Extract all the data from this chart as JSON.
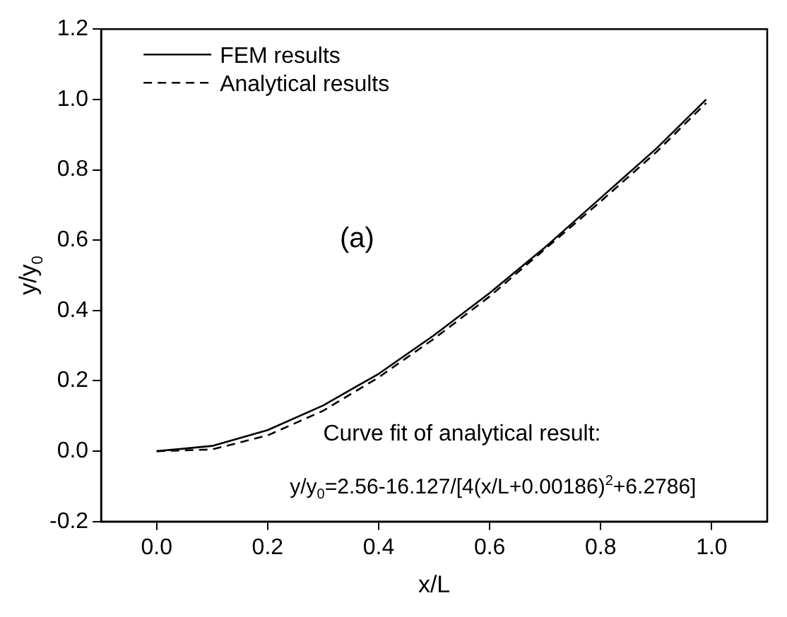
{
  "chart_data": {
    "type": "line",
    "xlabel": "x/L",
    "ylabel": "y/y$_{0}$",
    "annotations": [
      "(a)",
      "Curve fit of analytical result:",
      "y/y$_{0}$=2.56-16.127/[4(x/L+0.00186)$^{2}$+6.2786]"
    ],
    "series": [
      {
        "name": "FEM results",
        "color": "#000000",
        "line_style": "solid",
        "x": [
          0,
          0.1,
          0.2,
          0.3,
          0.4,
          0.5,
          0.6,
          0.7,
          0.8,
          0.9,
          0.99
        ],
        "values": [
          0,
          0.015,
          0.06,
          0.13,
          0.22,
          0.33,
          0.45,
          0.58,
          0.72,
          0.86,
          1.0
        ]
      },
      {
        "name": "Analytical results",
        "color": "#000000",
        "line_style": "dashed",
        "x": [
          0,
          0.1,
          0.2,
          0.3,
          0.4,
          0.5,
          0.6,
          0.7,
          0.8,
          0.9,
          0.99
        ],
        "values": [
          0,
          0.005,
          0.045,
          0.115,
          0.21,
          0.32,
          0.44,
          0.575,
          0.71,
          0.85,
          0.99
        ]
      }
    ],
    "xlim": [
      -0.1,
      1.1
    ],
    "xticks": [
      {
        "value": 0,
        "label": "0.0"
      },
      {
        "value": 0.2,
        "label": "0.2"
      },
      {
        "value": 0.4,
        "label": "0.4"
      },
      {
        "value": 0.6,
        "label": "0.6"
      },
      {
        "value": 0.8,
        "label": "0.8"
      },
      {
        "value": 1,
        "label": "1.0"
      }
    ],
    "ylim": [
      -0.2,
      1.2
    ],
    "yticks": [
      {
        "value": -0.2,
        "label": "-0.2"
      },
      {
        "value": 0,
        "label": "0.0"
      },
      {
        "value": 0.2,
        "label": "0.2"
      },
      {
        "value": 0.4,
        "label": "0.4"
      },
      {
        "value": 0.6,
        "label": "0.6"
      },
      {
        "value": 0.8,
        "label": "0.8"
      },
      {
        "value": 1,
        "label": "1.0"
      },
      {
        "value": 1.2,
        "label": "1.2"
      }
    ],
    "grid": false,
    "legend": "top left",
    "marker": "none"
  }
}
